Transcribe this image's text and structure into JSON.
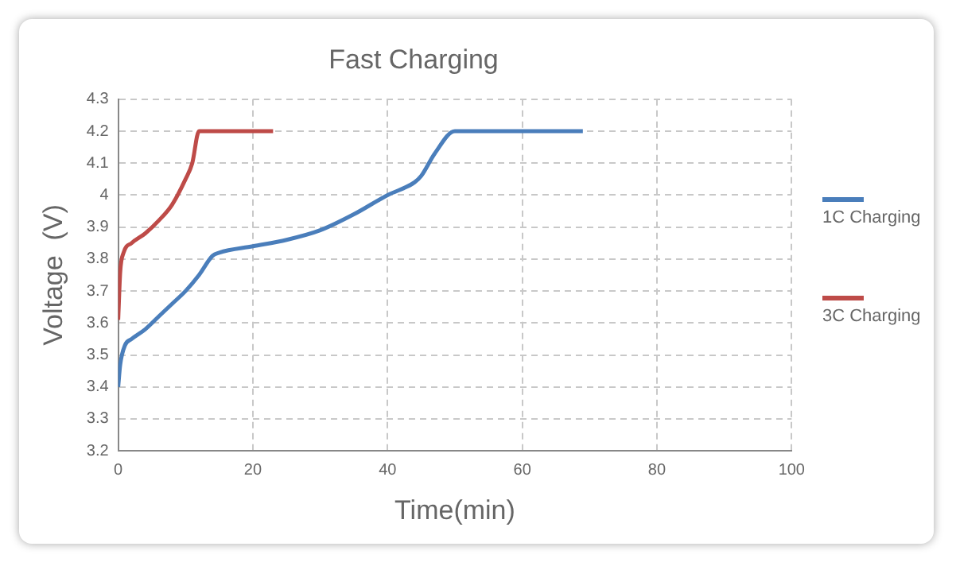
{
  "chart_data": {
    "type": "line",
    "title": "Fast Charging",
    "xlabel": "Time(min)",
    "ylabel": "Voltage  (V)",
    "xlim": [
      0,
      100
    ],
    "xticks": [
      0,
      20,
      40,
      60,
      80,
      100
    ],
    "ylim": [
      3.2,
      4.3
    ],
    "yticks": [
      3.2,
      3.3,
      3.4,
      3.5,
      3.6,
      3.7,
      3.8,
      3.9,
      4,
      4.1,
      4.2,
      4.3
    ],
    "grid": true,
    "legend": "right",
    "marker": "none",
    "line_style": "solid",
    "series": [
      {
        "name": "1C Charging",
        "color": "#4a7ebb",
        "x": [
          0,
          0.3,
          1,
          2,
          4,
          6,
          8,
          10,
          12,
          14,
          15,
          20,
          25,
          30,
          35,
          40,
          44,
          45,
          47,
          50,
          69
        ],
        "values": [
          3.4,
          3.47,
          3.53,
          3.55,
          3.58,
          3.62,
          3.66,
          3.7,
          3.75,
          3.81,
          3.82,
          3.84,
          3.86,
          3.89,
          3.94,
          4.0,
          4.04,
          4.06,
          4.13,
          4.2,
          4.2
        ]
      },
      {
        "name": "3C Charging",
        "color": "#be4b48",
        "x": [
          0,
          0.3,
          0.8,
          2,
          4,
          6,
          8,
          10,
          11,
          12,
          23
        ],
        "values": [
          3.61,
          3.76,
          3.82,
          3.85,
          3.88,
          3.92,
          3.97,
          4.05,
          4.1,
          4.2,
          4.2
        ]
      }
    ]
  }
}
